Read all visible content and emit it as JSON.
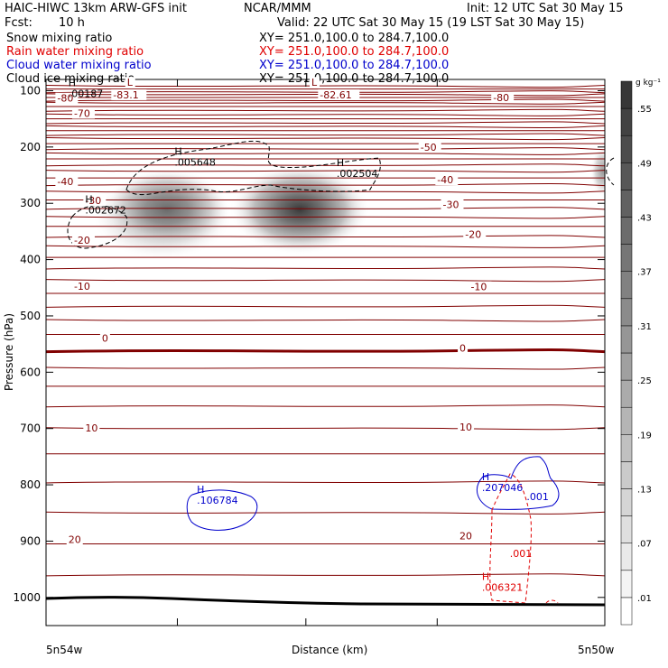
{
  "header": {
    "title": "HAIC-HIWC 13km ARW-GFS init",
    "institution": "NCAR/MMM",
    "init": "Init: 12 UTC Sat 30 May 15",
    "fcst_label": "Fcst:",
    "fcst_value": "10 h",
    "valid": "Valid: 22 UTC Sat 30 May 15 (19 LST Sat 30 May 15)",
    "fields": [
      {
        "name": "Snow mixing ratio",
        "xy": "XY= 251.0,100.0 to 284.7,100.0",
        "color": "#000000"
      },
      {
        "name": "Rain water mixing ratio",
        "xy": "XY= 251.0,100.0 to 284.7,100.0",
        "color": "#e00000"
      },
      {
        "name": "Cloud water mixing ratio",
        "xy": "XY= 251.0,100.0 to 284.7,100.0",
        "color": "#0000cc"
      },
      {
        "name": "Cloud ice mixing ratio",
        "xy": "XY= 251.0,100.0 to 284.7,100.0",
        "color": "#000000"
      }
    ]
  },
  "chart_data": {
    "type": "contour-cross-section",
    "xlabel": "Distance (km)",
    "ylabel": "Pressure (hPa)",
    "x_tick_labels": {
      "left": "5n54w",
      "right": "5n50w"
    },
    "y_axis": {
      "range": [
        1050,
        80
      ],
      "ticks": [
        100,
        200,
        300,
        400,
        500,
        600,
        700,
        800,
        900,
        1000
      ]
    },
    "colorbar": {
      "unit": "g kg⁻¹",
      "labels": [
        ".01",
        ".07",
        ".13",
        ".19",
        ".25",
        ".31",
        ".37",
        ".43",
        ".49",
        ".55"
      ]
    },
    "temperature_contours": {
      "color": "#800000",
      "labels": [
        {
          "text": "-80",
          "x": 0.02,
          "p": 118
        },
        {
          "text": "-83.1",
          "x": 0.12,
          "p": 112
        },
        {
          "text": "L",
          "x": 0.145,
          "p": 90
        },
        {
          "text": "-82.61",
          "x": 0.49,
          "p": 112
        },
        {
          "text": "L",
          "x": 0.475,
          "p": 90
        },
        {
          "text": "-80",
          "x": 0.8,
          "p": 117
        },
        {
          "text": "-70",
          "x": 0.05,
          "p": 145
        },
        {
          "text": "-50",
          "x": 0.67,
          "p": 205
        },
        {
          "text": "-40",
          "x": 0.02,
          "p": 266
        },
        {
          "text": "-40",
          "x": 0.7,
          "p": 263
        },
        {
          "text": "-30",
          "x": 0.07,
          "p": 300
        },
        {
          "text": "-30",
          "x": 0.71,
          "p": 307
        },
        {
          "text": "-20",
          "x": 0.05,
          "p": 370
        },
        {
          "text": "-20",
          "x": 0.75,
          "p": 360
        },
        {
          "text": "-10",
          "x": 0.05,
          "p": 452
        },
        {
          "text": "-10",
          "x": 0.76,
          "p": 453
        },
        {
          "text": "0",
          "x": 0.1,
          "p": 544
        },
        {
          "text": "0",
          "x": 0.74,
          "p": 562
        },
        {
          "text": "10",
          "x": 0.07,
          "p": 704
        },
        {
          "text": "10",
          "x": 0.74,
          "p": 702
        },
        {
          "text": "20",
          "x": 0.04,
          "p": 902
        },
        {
          "text": "20",
          "x": 0.74,
          "p": 895
        }
      ]
    },
    "snow_maxima": [
      {
        "label": "H",
        "value": ".00187",
        "x": 0.04,
        "p": 108
      },
      {
        "label": "H",
        "value": ".005648",
        "x": 0.23,
        "p": 230
      },
      {
        "label": "H",
        "value": ".002504",
        "x": 0.52,
        "p": 250
      },
      {
        "label": "H",
        "value": ".002672",
        "x": 0.07,
        "p": 315
      }
    ],
    "cloud_water_maxima": [
      {
        "label": "H",
        "value": ".106784",
        "x": 0.27,
        "p": 830
      },
      {
        "label": "H",
        "value": ".207046",
        "x": 0.78,
        "p": 808
      }
    ],
    "cloud_water_contour_labels": [
      {
        "text": ".001",
        "x": 0.86,
        "p": 827
      }
    ],
    "rain_maxima": [
      {
        "label": "H",
        "value": ".006321",
        "x": 0.78,
        "p": 985
      }
    ],
    "rain_contour_labels": [
      {
        "text": ".001",
        "x": 0.83,
        "p": 928
      }
    ]
  }
}
